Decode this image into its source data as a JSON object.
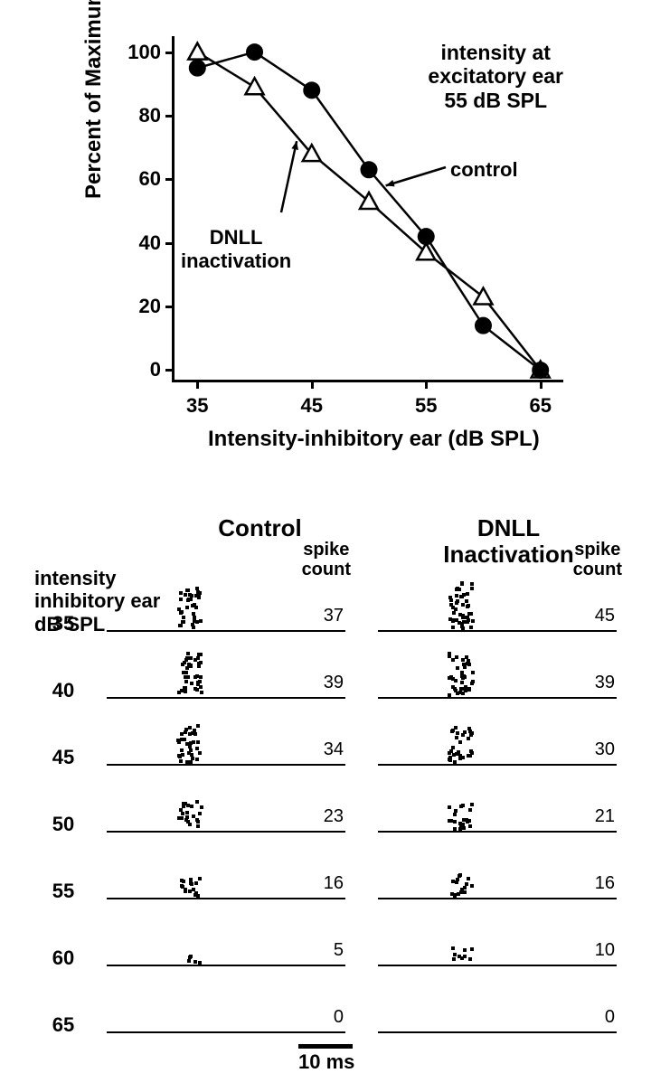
{
  "chart": {
    "title_line1": "intensity at",
    "title_line2": "excitatory ear",
    "title_line3": "55 dB SPL",
    "ylabel": "Percent of Maximum Response",
    "xlabel": "Intensity-inhibitory ear (dB SPL)",
    "xlim": [
      33,
      67
    ],
    "ylim": [
      -3,
      105
    ],
    "yticks": [
      0,
      20,
      40,
      60,
      80,
      100
    ],
    "xticks": [
      35,
      45,
      55,
      65
    ],
    "series": {
      "control": {
        "label": "control",
        "points": [
          [
            35,
            95
          ],
          [
            40,
            100
          ],
          [
            45,
            88
          ],
          [
            50,
            63
          ],
          [
            55,
            42
          ],
          [
            60,
            14
          ],
          [
            65,
            0
          ]
        ],
        "marker": "filled-circle",
        "color": "#000000"
      },
      "dnll": {
        "label_line1": "DNLL",
        "label_line2": "inactivation",
        "points": [
          [
            35,
            100
          ],
          [
            40,
            89
          ],
          [
            45,
            68
          ],
          [
            50,
            53
          ],
          [
            55,
            37
          ],
          [
            60,
            23
          ],
          [
            65,
            0
          ]
        ],
        "marker": "open-triangle",
        "color": "#000000"
      }
    }
  },
  "raster": {
    "left_label_line1": "intensity",
    "left_label_line2": "inhibitory ear",
    "left_label_line3": "dB SPL",
    "col1_title": "Control",
    "col2_title_line1": "DNLL",
    "col2_title_line2": "Inactivation",
    "spike_label_line1": "spike",
    "spike_label_line2": "count",
    "db_levels": [
      35,
      40,
      45,
      50,
      55,
      60,
      65
    ],
    "control_counts": [
      37,
      39,
      34,
      23,
      16,
      5,
      0
    ],
    "dnll_counts": [
      45,
      39,
      30,
      21,
      16,
      10,
      0
    ],
    "scale_label": "10 ms",
    "dot_color": "#000000",
    "line_color": "#000000"
  }
}
